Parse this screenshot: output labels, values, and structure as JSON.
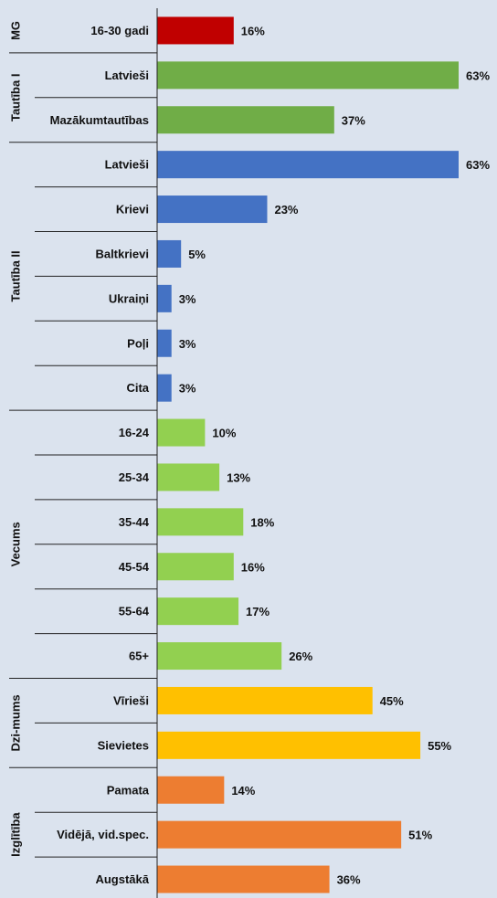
{
  "chart_data": {
    "type": "bar",
    "orientation": "horizontal",
    "xlim": [
      0,
      63
    ],
    "value_suffix": "%",
    "groups": [
      {
        "name": "MG",
        "color": "#c00000",
        "items": [
          {
            "category": "16-30 gadi",
            "value": 16
          }
        ]
      },
      {
        "name": "Tautība I",
        "color": "#70ad47",
        "items": [
          {
            "category": "Latvieši",
            "value": 63
          },
          {
            "category": "Mazākumtautības",
            "value": 37
          }
        ]
      },
      {
        "name": "Tautība II",
        "color": "#4472c4",
        "items": [
          {
            "category": "Latvieši",
            "value": 63
          },
          {
            "category": "Krievi",
            "value": 23
          },
          {
            "category": "Baltkrievi",
            "value": 5
          },
          {
            "category": "Ukraiņi",
            "value": 3
          },
          {
            "category": "Poļi",
            "value": 3
          },
          {
            "category": "Cita",
            "value": 3
          }
        ]
      },
      {
        "name": "Vecums",
        "color": "#92d050",
        "items": [
          {
            "category": "16-24",
            "value": 10
          },
          {
            "category": "25-34",
            "value": 13
          },
          {
            "category": "35-44",
            "value": 18
          },
          {
            "category": "45-54",
            "value": 16
          },
          {
            "category": "55-64",
            "value": 17
          },
          {
            "category": "65+",
            "value": 26
          }
        ]
      },
      {
        "name": "Dzi-mums",
        "color": "#ffc000",
        "items": [
          {
            "category": "Vīrieši",
            "value": 45
          },
          {
            "category": "Sievietes",
            "value": 55
          }
        ]
      },
      {
        "name": "Izglītība",
        "color": "#ed7d31",
        "items": [
          {
            "category": "Pamata",
            "value": 14
          },
          {
            "category": "Vidējā, vid.spec.",
            "value": 51
          },
          {
            "category": "Augstākā",
            "value": 36
          }
        ]
      }
    ]
  }
}
